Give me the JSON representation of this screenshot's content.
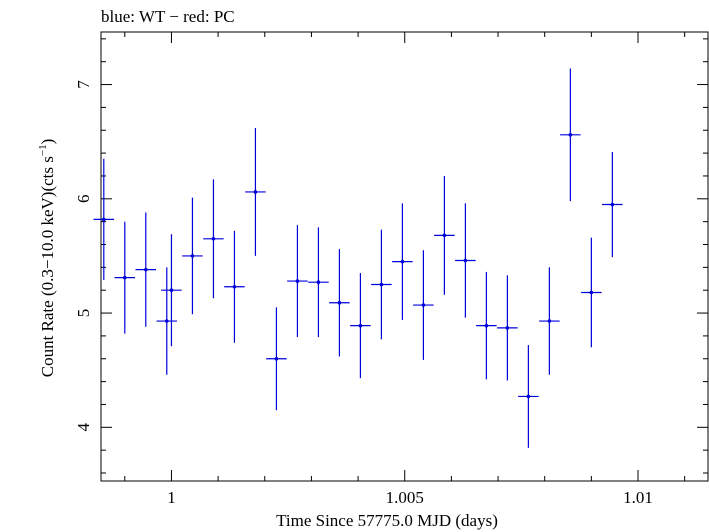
{
  "chart_data": {
    "type": "scatter",
    "title": "blue: WT − red: PC",
    "xlabel": "Time Since 57775.0 MJD (days)",
    "ylabel_main": "Count Rate (0.3−10.0 keV)(cts s",
    "ylabel_sup": "−1",
    "ylabel_close": ")",
    "xlim": [
      0.99849,
      1.0115
    ],
    "ylim": [
      3.53,
      7.46
    ],
    "xticks": [
      {
        "value": 1.0,
        "label": "1"
      },
      {
        "value": 1.005,
        "label": "1.005"
      },
      {
        "value": 1.01,
        "label": "1.01"
      }
    ],
    "yticks": [
      {
        "value": 4,
        "label": "4"
      },
      {
        "value": 5,
        "label": "5"
      },
      {
        "value": 6,
        "label": "6"
      },
      {
        "value": 7,
        "label": "7"
      }
    ],
    "grid": false,
    "series": [
      {
        "color": "#0000dd",
        "points": [
          {
            "x": 0.99855,
            "xerr": 0.00022,
            "y": 5.82,
            "yerr": 0.53
          },
          {
            "x": 0.999,
            "xerr": 0.00022,
            "y": 5.31,
            "yerr": 0.49
          },
          {
            "x": 0.99945,
            "xerr": 0.00022,
            "y": 5.38,
            "yerr": 0.5
          },
          {
            "x": 0.9999,
            "xerr": 0.00022,
            "y": 4.93,
            "yerr": 0.47
          },
          {
            "x": 1.0,
            "xerr": 0.00022,
            "y": 5.2,
            "yerr": 0.49
          },
          {
            "x": 1.00045,
            "xerr": 0.00022,
            "y": 5.5,
            "yerr": 0.51
          },
          {
            "x": 1.0009,
            "xerr": 0.00022,
            "y": 5.65,
            "yerr": 0.52
          },
          {
            "x": 1.00135,
            "xerr": 0.00022,
            "y": 5.23,
            "yerr": 0.49
          },
          {
            "x": 1.0018,
            "xerr": 0.00022,
            "y": 6.06,
            "yerr": 0.56
          },
          {
            "x": 1.00225,
            "xerr": 0.00022,
            "y": 4.6,
            "yerr": 0.45
          },
          {
            "x": 1.0027,
            "xerr": 0.00022,
            "y": 5.28,
            "yerr": 0.49
          },
          {
            "x": 1.00315,
            "xerr": 0.00022,
            "y": 5.27,
            "yerr": 0.48
          },
          {
            "x": 1.0036,
            "xerr": 0.00022,
            "y": 5.09,
            "yerr": 0.47
          },
          {
            "x": 1.00405,
            "xerr": 0.00022,
            "y": 4.89,
            "yerr": 0.46
          },
          {
            "x": 1.0045,
            "xerr": 0.00022,
            "y": 5.25,
            "yerr": 0.48
          },
          {
            "x": 1.00495,
            "xerr": 0.00022,
            "y": 5.45,
            "yerr": 0.51
          },
          {
            "x": 1.0054,
            "xerr": 0.00022,
            "y": 5.07,
            "yerr": 0.48
          },
          {
            "x": 1.00585,
            "xerr": 0.00022,
            "y": 5.68,
            "yerr": 0.52
          },
          {
            "x": 1.0063,
            "xerr": 0.00022,
            "y": 5.46,
            "yerr": 0.5
          },
          {
            "x": 1.00675,
            "xerr": 0.00022,
            "y": 4.89,
            "yerr": 0.47
          },
          {
            "x": 1.0072,
            "xerr": 0.00022,
            "y": 4.87,
            "yerr": 0.46
          },
          {
            "x": 1.00765,
            "xerr": 0.00022,
            "y": 4.27,
            "yerr": 0.45
          },
          {
            "x": 1.0081,
            "xerr": 0.00022,
            "y": 4.93,
            "yerr": 0.47
          },
          {
            "x": 1.00855,
            "xerr": 0.00022,
            "y": 6.56,
            "yerr": 0.58
          },
          {
            "x": 1.009,
            "xerr": 0.00022,
            "y": 5.18,
            "yerr": 0.48
          },
          {
            "x": 1.00945,
            "xerr": 0.00022,
            "y": 5.95,
            "yerr": 0.46
          }
        ]
      }
    ]
  }
}
